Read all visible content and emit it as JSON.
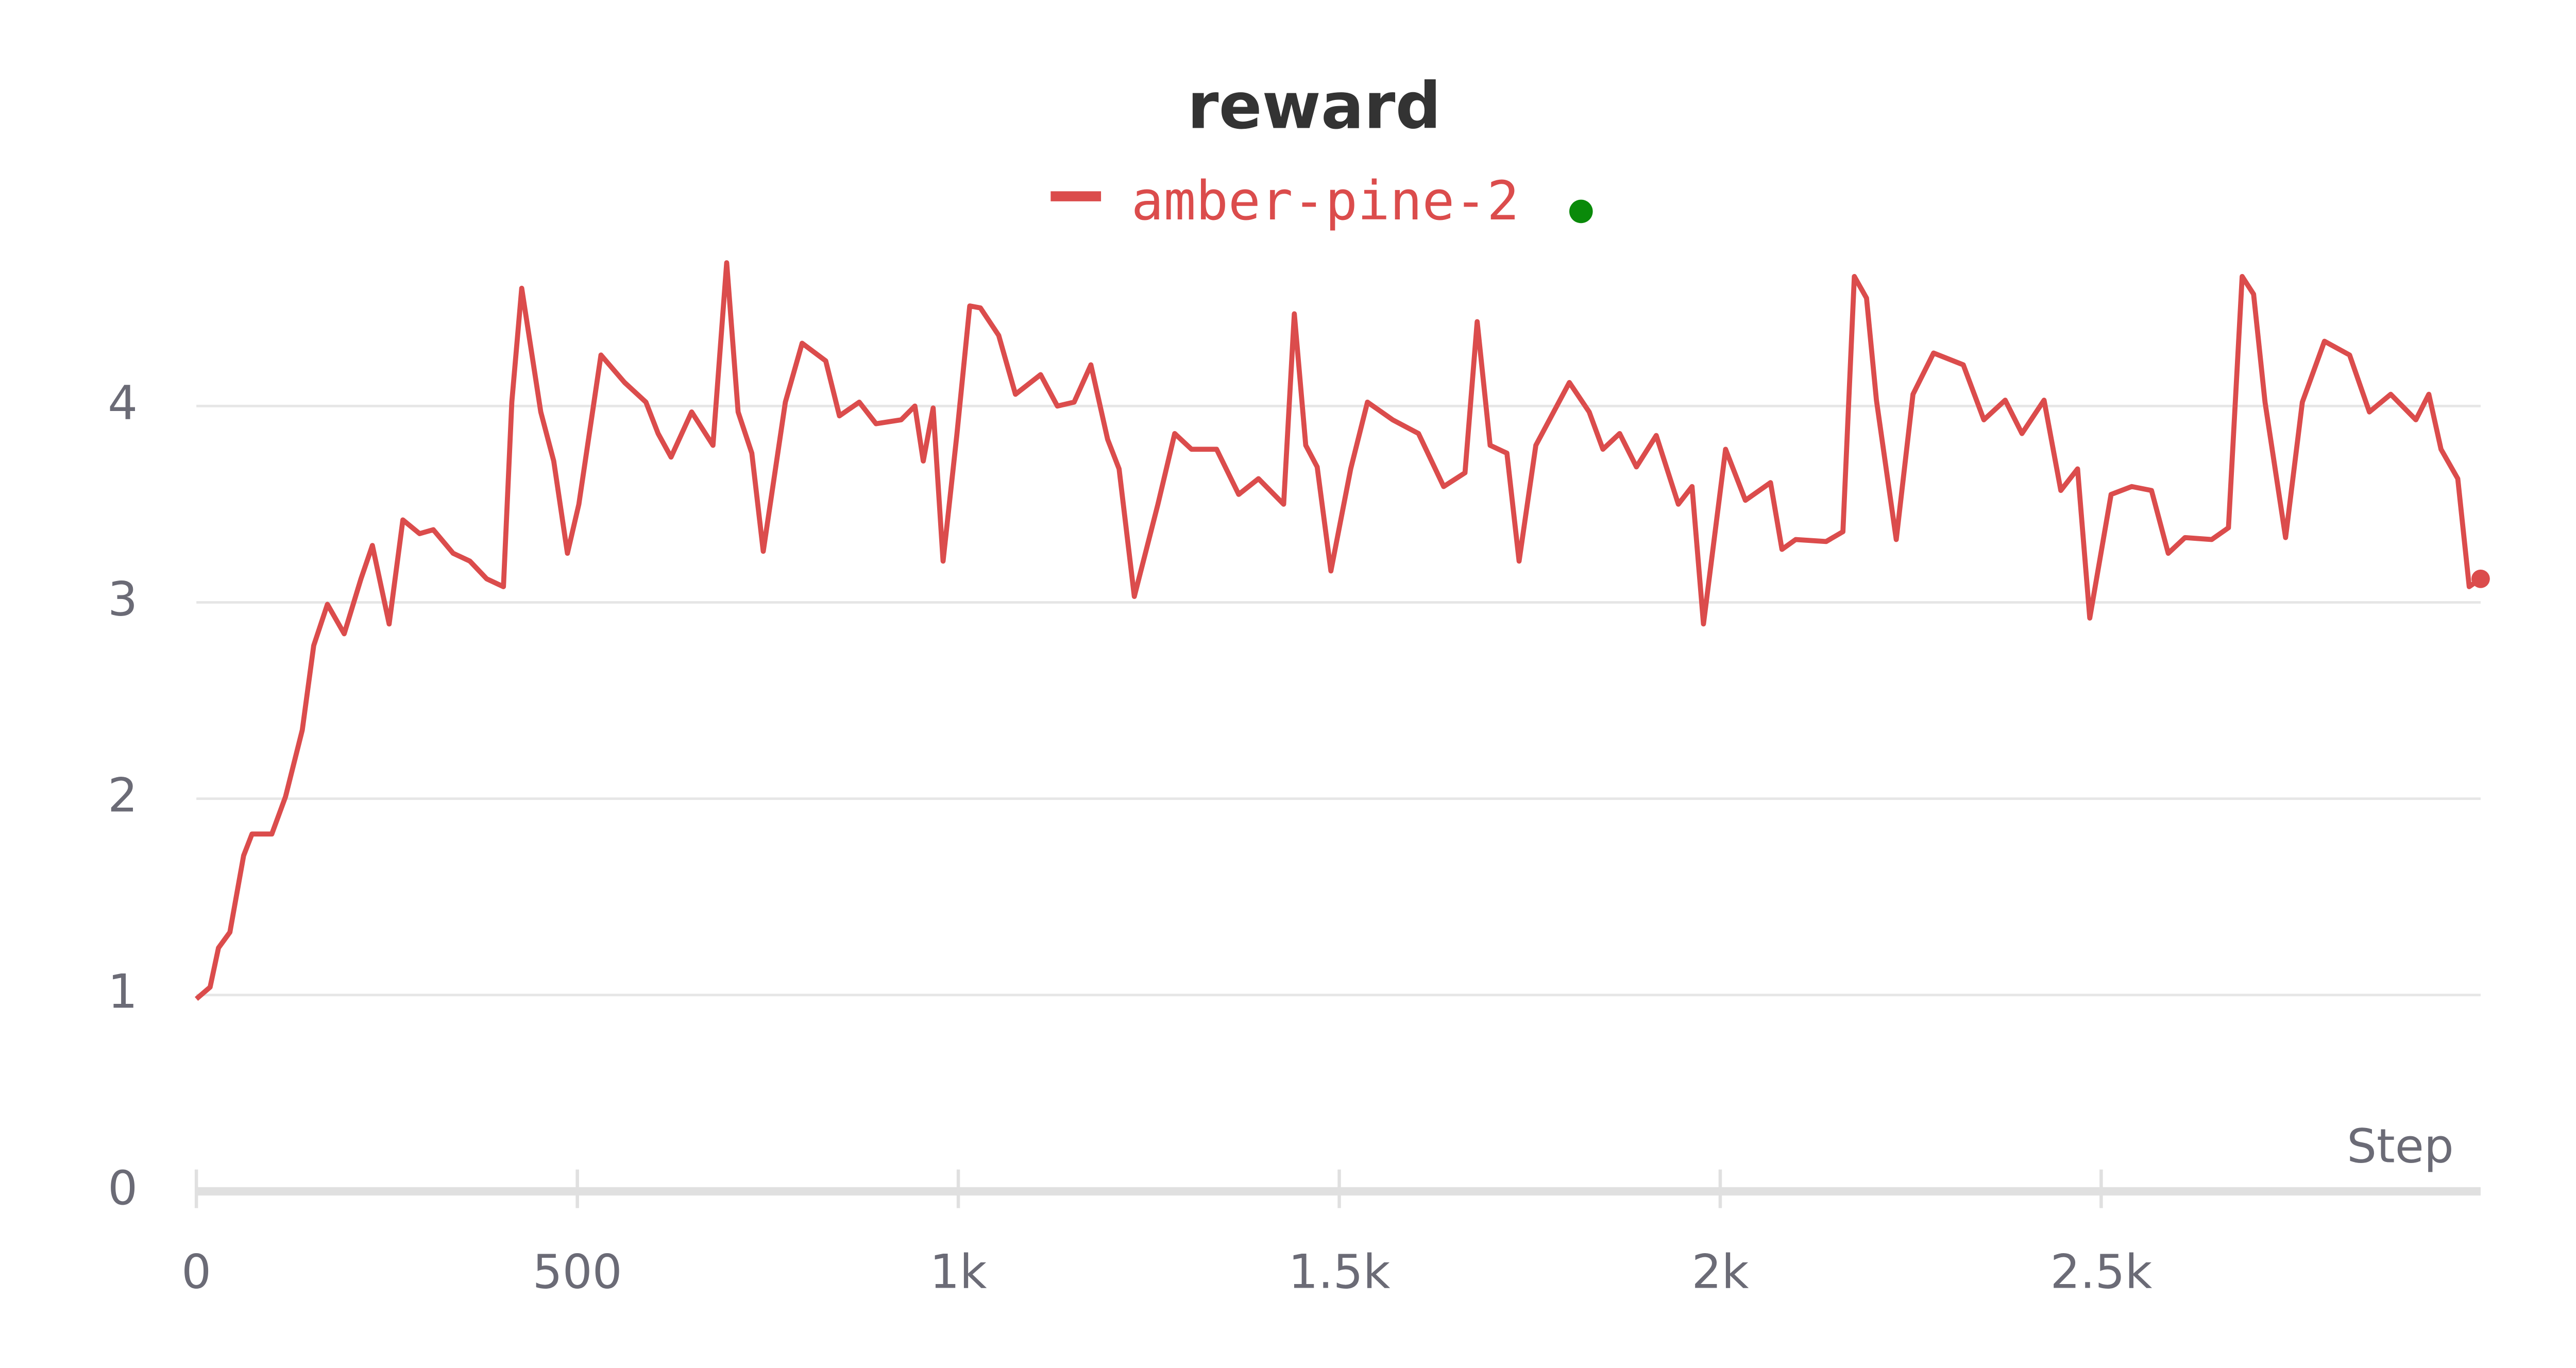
{
  "chart_data": {
    "type": "line",
    "title": "reward",
    "x_label": "Step",
    "x": [
      0,
      18,
      29,
      44,
      62,
      73,
      99,
      117,
      139,
      154,
      172,
      194,
      216,
      231,
      253,
      271,
      293,
      311,
      337,
      359,
      381,
      403,
      414,
      427,
      452,
      469,
      487,
      502,
      531,
      562,
      590,
      606,
      623,
      650,
      678,
      696,
      711,
      729,
      744,
      773,
      795,
      826,
      844,
      870,
      892,
      925,
      943,
      954,
      967,
      980,
      998,
      1015,
      1029,
      1053,
      1075,
      1108,
      1130,
      1152,
      1174,
      1196,
      1211,
      1231,
      1262,
      1284,
      1306,
      1339,
      1368,
      1394,
      1427,
      1441,
      1456,
      1471,
      1489,
      1515,
      1537,
      1570,
      1604,
      1637,
      1665,
      1681,
      1698,
      1720,
      1736,
      1758,
      1802,
      1828,
      1846,
      1868,
      1890,
      1916,
      1945,
      1963,
      1978,
      2007,
      2033,
      2066,
      2081,
      2099,
      2139,
      2161,
      2176,
      2192,
      2205,
      2231,
      2253,
      2280,
      2319,
      2346,
      2374,
      2396,
      2425,
      2447,
      2469,
      2485,
      2513,
      2540,
      2566,
      2588,
      2610,
      2645,
      2667,
      2685,
      2700,
      2715,
      2742,
      2764,
      2793,
      2826,
      2852,
      2880,
      2913,
      2930,
      2946,
      2968,
      2983,
      2998
    ],
    "series": [
      {
        "name": "amber-pine-2",
        "color": "#db4c4c",
        "values": [
          0.98,
          1.04,
          1.24,
          1.32,
          1.71,
          1.82,
          1.82,
          2.01,
          2.35,
          2.78,
          2.99,
          2.84,
          3.12,
          3.29,
          2.89,
          3.42,
          3.35,
          3.37,
          3.25,
          3.21,
          3.12,
          3.08,
          4.02,
          4.6,
          3.97,
          3.72,
          3.25,
          3.5,
          4.26,
          4.12,
          4.02,
          3.86,
          3.74,
          3.97,
          3.8,
          4.73,
          3.97,
          3.76,
          3.26,
          4.02,
          4.32,
          4.23,
          3.95,
          4.02,
          3.91,
          3.93,
          4.0,
          3.72,
          3.99,
          3.21,
          3.85,
          4.51,
          4.5,
          4.36,
          4.06,
          4.16,
          4.0,
          4.02,
          4.21,
          3.83,
          3.68,
          3.03,
          3.5,
          3.86,
          3.78,
          3.78,
          3.55,
          3.63,
          3.5,
          4.47,
          3.8,
          3.69,
          3.16,
          3.68,
          4.02,
          3.93,
          3.86,
          3.59,
          3.66,
          4.43,
          3.8,
          3.76,
          3.21,
          3.8,
          4.12,
          3.97,
          3.78,
          3.86,
          3.69,
          3.85,
          3.5,
          3.59,
          2.89,
          3.78,
          3.52,
          3.61,
          3.27,
          3.32,
          3.31,
          3.36,
          4.66,
          4.55,
          4.03,
          3.32,
          4.06,
          4.27,
          4.21,
          3.93,
          4.03,
          3.86,
          4.03,
          3.57,
          3.68,
          2.92,
          3.55,
          3.59,
          3.57,
          3.25,
          3.33,
          3.32,
          3.38,
          4.66,
          4.57,
          4.02,
          3.33,
          4.02,
          4.33,
          4.26,
          3.97,
          4.06,
          3.93,
          4.06,
          3.78,
          3.63,
          3.08,
          3.12
        ]
      }
    ],
    "xlim": [
      0,
      2998
    ],
    "ylim": [
      0,
      4.75
    ],
    "xticks": [
      0,
      500,
      {
        "value": 1000,
        "label": "1k"
      },
      {
        "value": 1500,
        "label": "1.5k"
      },
      {
        "value": 2000,
        "label": "2k"
      },
      {
        "value": 2500,
        "label": "2.5k"
      }
    ],
    "yticks": [
      0,
      1,
      2,
      3,
      4
    ],
    "grid": true
  }
}
